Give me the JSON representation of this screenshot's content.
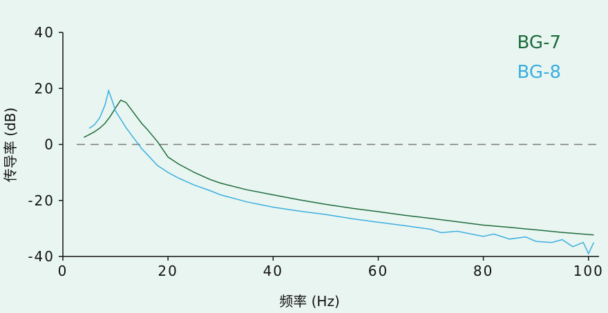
{
  "chart_data": {
    "type": "line",
    "x_label": "频率 (Hz)",
    "y_label": "传导率 (dB)",
    "xlim": [
      0,
      102
    ],
    "ylim": [
      -40,
      40
    ],
    "xticks": [
      0,
      20,
      40,
      60,
      80,
      100
    ],
    "yticks": [
      -40,
      -20,
      0,
      20,
      40
    ],
    "reference_line": 0,
    "legend": "upper right",
    "series": [
      {
        "name": "BG-7",
        "color": "#1c6b3d",
        "x": [
          4,
          5,
          6,
          7,
          8,
          9,
          10,
          11,
          12,
          13,
          14,
          15,
          16,
          18,
          20,
          22,
          25,
          28,
          30,
          35,
          40,
          45,
          50,
          55,
          60,
          65,
          70,
          75,
          80,
          85,
          90,
          95,
          101
        ],
        "values": [
          2.5,
          3.5,
          4.5,
          5.8,
          7.5,
          10,
          13,
          15.8,
          15,
          12.5,
          10,
          7.5,
          5.5,
          1,
          -4.5,
          -7,
          -10,
          -12.5,
          -13.8,
          -16.2,
          -18,
          -19.8,
          -21.4,
          -22.8,
          -24,
          -25.3,
          -26.4,
          -27.6,
          -28.8,
          -29.6,
          -30.5,
          -31.4,
          -32.3
        ]
      },
      {
        "name": "BG-8",
        "color": "#3aaee0",
        "x": [
          5,
          6,
          7,
          8,
          8.7,
          9.5,
          10,
          11,
          12,
          13,
          14,
          15,
          16,
          18,
          20,
          22,
          25,
          28,
          30,
          35,
          40,
          45,
          50,
          55,
          60,
          65,
          70,
          72,
          75,
          80,
          82,
          85,
          88,
          90,
          93,
          95,
          97,
          99,
          100,
          101
        ],
        "values": [
          5.7,
          7,
          9.5,
          14,
          19.2,
          15,
          12,
          9,
          6,
          3.5,
          1,
          -1.5,
          -3.5,
          -7.5,
          -10,
          -12,
          -14.5,
          -16.5,
          -18,
          -20.5,
          -22.4,
          -23.8,
          -25,
          -26.5,
          -27.8,
          -29,
          -30.3,
          -31.5,
          -31,
          -32.8,
          -32,
          -33.8,
          -33,
          -34.6,
          -35,
          -34,
          -36.5,
          -35,
          -39,
          -35
        ]
      }
    ]
  }
}
